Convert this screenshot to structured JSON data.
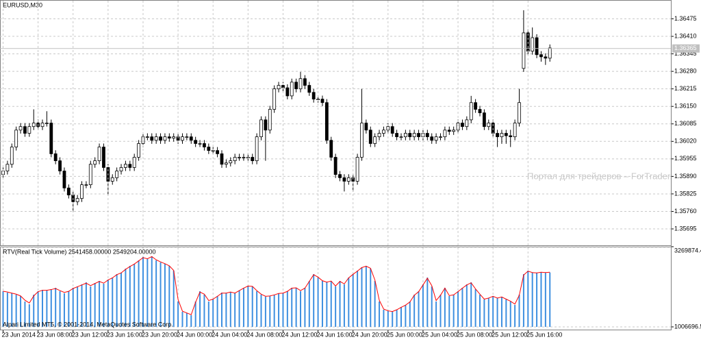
{
  "chart_data": [
    {
      "type": "candlestick",
      "title": "EURUSD,M30",
      "watermark": "Портал для трейдеров – ForTrader.ru",
      "open": [
        1.35897,
        1.3591,
        1.35935,
        1.35999,
        1.36062,
        1.36075,
        1.3605,
        1.36075,
        1.36088,
        1.36075,
        1.36088,
        1.36088,
        1.35974,
        1.35948,
        1.3591,
        1.35847,
        1.35821,
        1.35796,
        1.35808,
        1.35859,
        1.35859,
        1.35935,
        1.35948,
        1.35999,
        1.35923,
        1.35872,
        1.35885,
        1.3591,
        1.35923,
        1.35935,
        1.35923,
        1.35961,
        1.36012,
        1.36037,
        1.36037,
        1.36024,
        1.36037,
        1.36024,
        1.36037,
        1.36032,
        1.36037,
        1.36024,
        1.36037,
        1.36037,
        1.36024,
        1.36012,
        1.36012,
        1.35999,
        1.35986,
        1.35986,
        1.35974,
        1.35935,
        1.3594,
        1.35948,
        1.35961,
        1.35961,
        1.35961,
        1.35961,
        1.35948,
        1.36037,
        1.361,
        1.36062,
        1.36139,
        1.36215,
        1.36228,
        1.36219,
        1.36189,
        1.3624,
        1.36215,
        1.36253,
        1.36228,
        1.36202,
        1.36177,
        1.36177,
        1.36164,
        1.36024,
        1.35961,
        1.35897,
        1.35885,
        1.35872,
        1.35885,
        1.35872,
        1.35961,
        1.36088,
        1.36062,
        1.36012,
        1.36037,
        1.3605,
        1.36062,
        1.36075,
        1.3605,
        1.36037,
        1.36037,
        1.3605,
        1.36037,
        1.3605,
        1.36037,
        1.3605,
        1.36037,
        1.36024,
        1.36037,
        1.36037,
        1.36062,
        1.36057,
        1.36062,
        1.36088,
        1.36075,
        1.361,
        1.36164,
        1.36139,
        1.36126,
        1.36075,
        1.36088,
        1.3605,
        1.36037,
        1.3605,
        1.36041,
        1.36037,
        1.36088,
        1.36291,
        1.36423,
        1.36355,
        1.36405,
        1.36342,
        1.36334,
        1.36329
      ],
      "high": [
        1.35923,
        1.35948,
        1.36012,
        1.36075,
        1.36088,
        1.36088,
        1.36088,
        1.36139,
        1.36101,
        1.36101,
        1.36132,
        1.36101,
        1.35987,
        1.35961,
        1.35923,
        1.3586,
        1.35834,
        1.35821,
        1.35872,
        1.35872,
        1.35948,
        1.35961,
        1.36012,
        1.36012,
        1.35936,
        1.35898,
        1.35923,
        1.35936,
        1.35948,
        1.35948,
        1.35974,
        1.36025,
        1.3605,
        1.3605,
        1.3605,
        1.3605,
        1.3605,
        1.3605,
        1.3605,
        1.3605,
        1.3605,
        1.3605,
        1.3605,
        1.3605,
        1.36037,
        1.36025,
        1.36025,
        1.36012,
        1.35999,
        1.35999,
        1.35987,
        1.35953,
        1.35961,
        1.35974,
        1.35974,
        1.35974,
        1.35974,
        1.35974,
        1.3605,
        1.36113,
        1.36113,
        1.36152,
        1.36228,
        1.36241,
        1.36241,
        1.36232,
        1.36253,
        1.36253,
        1.36278,
        1.36266,
        1.36241,
        1.36215,
        1.3619,
        1.3619,
        1.36177,
        1.36037,
        1.35974,
        1.3591,
        1.35898,
        1.35898,
        1.35898,
        1.35974,
        1.36215,
        1.36101,
        1.36075,
        1.3605,
        1.36063,
        1.36075,
        1.36088,
        1.36088,
        1.36063,
        1.3605,
        1.36063,
        1.36063,
        1.36063,
        1.36063,
        1.36063,
        1.36063,
        1.3605,
        1.3605,
        1.3605,
        1.36075,
        1.36075,
        1.36075,
        1.36101,
        1.36101,
        1.36113,
        1.36189,
        1.36177,
        1.36152,
        1.36139,
        1.36101,
        1.36101,
        1.36063,
        1.36063,
        1.36063,
        1.36063,
        1.36101,
        1.36215,
        1.36507,
        1.36436,
        1.36443,
        1.36418,
        1.36355,
        1.36347,
        1.3638
      ],
      "low": [
        1.35884,
        1.35897,
        1.35922,
        1.35986,
        1.36049,
        1.36037,
        1.36037,
        1.36062,
        1.36062,
        1.36062,
        1.36075,
        1.35961,
        1.35935,
        1.35897,
        1.35834,
        1.35808,
        1.35758,
        1.35783,
        1.35795,
        1.35846,
        1.35846,
        1.35922,
        1.35935,
        1.3591,
        1.35821,
        1.35859,
        1.35872,
        1.35897,
        1.3591,
        1.3591,
        1.3591,
        1.35948,
        1.35999,
        1.36024,
        1.36011,
        1.36011,
        1.36011,
        1.36011,
        1.36019,
        1.36019,
        1.36011,
        1.36011,
        1.36024,
        1.36011,
        1.35999,
        1.35999,
        1.35986,
        1.35973,
        1.35973,
        1.35961,
        1.35922,
        1.35922,
        1.35927,
        1.35935,
        1.35948,
        1.35948,
        1.35948,
        1.35935,
        1.35935,
        1.36024,
        1.35948,
        1.36049,
        1.36126,
        1.36202,
        1.36206,
        1.36176,
        1.36176,
        1.36202,
        1.36202,
        1.36215,
        1.36189,
        1.36164,
        1.36164,
        1.36151,
        1.36011,
        1.35948,
        1.35884,
        1.35872,
        1.35834,
        1.35859,
        1.35834,
        1.35859,
        1.35948,
        1.36049,
        1.35999,
        1.35999,
        1.36024,
        1.36037,
        1.36049,
        1.36037,
        1.36024,
        1.36024,
        1.36024,
        1.36024,
        1.36024,
        1.36024,
        1.36024,
        1.36024,
        1.36011,
        1.36011,
        1.36024,
        1.36024,
        1.36044,
        1.36044,
        1.36049,
        1.36062,
        1.36062,
        1.36087,
        1.36126,
        1.36113,
        1.36062,
        1.36062,
        1.36037,
        1.35999,
        1.36011,
        1.36011,
        1.35999,
        1.36024,
        1.36075,
        1.36278,
        1.36342,
        1.36342,
        1.36329,
        1.36316,
        1.36304,
        1.36316
      ],
      "close": [
        1.3591,
        1.35935,
        1.35999,
        1.36062,
        1.36075,
        1.3605,
        1.36075,
        1.36088,
        1.36075,
        1.36088,
        1.36088,
        1.35974,
        1.35948,
        1.3591,
        1.35847,
        1.35821,
        1.35796,
        1.35808,
        1.35859,
        1.35859,
        1.35935,
        1.35948,
        1.35999,
        1.35923,
        1.35872,
        1.35885,
        1.3591,
        1.35923,
        1.35935,
        1.35923,
        1.35961,
        1.36012,
        1.36037,
        1.36037,
        1.36024,
        1.36037,
        1.36024,
        1.36037,
        1.36032,
        1.36037,
        1.36024,
        1.36037,
        1.36037,
        1.36024,
        1.36012,
        1.36012,
        1.35999,
        1.35986,
        1.35986,
        1.35974,
        1.35935,
        1.3594,
        1.35948,
        1.35961,
        1.35961,
        1.35961,
        1.35961,
        1.35948,
        1.36037,
        1.361,
        1.36062,
        1.36139,
        1.36215,
        1.36228,
        1.36219,
        1.36189,
        1.3624,
        1.36215,
        1.36253,
        1.36228,
        1.36202,
        1.36177,
        1.36177,
        1.36164,
        1.36024,
        1.35961,
        1.35897,
        1.35885,
        1.35872,
        1.35885,
        1.35872,
        1.35961,
        1.36088,
        1.36062,
        1.36012,
        1.36037,
        1.3605,
        1.36062,
        1.36075,
        1.3605,
        1.36037,
        1.36037,
        1.3605,
        1.36037,
        1.3605,
        1.36037,
        1.3605,
        1.36037,
        1.36024,
        1.36037,
        1.36037,
        1.36062,
        1.36057,
        1.36062,
        1.36088,
        1.36075,
        1.361,
        1.36164,
        1.36139,
        1.36126,
        1.36075,
        1.36088,
        1.3605,
        1.36037,
        1.3605,
        1.36041,
        1.36037,
        1.36088,
        1.36164,
        1.36423,
        1.36355,
        1.36405,
        1.36342,
        1.36334,
        1.36329,
        1.36367
      ],
      "up_color": "#ffffff",
      "down_color": "#000000",
      "outline_color": "#000000",
      "ylim": [
        1.35634,
        1.36545
      ],
      "yticks": [
        1.36475,
        {
          "value": 1.3641,
          "label": "1.36410"
        },
        1.36345,
        {
          "value": 1.3628,
          "label": "1.36280"
        },
        1.36215,
        {
          "value": 1.3615,
          "label": "1.36150"
        },
        1.36085,
        {
          "value": 1.3602,
          "label": "1.36020"
        },
        1.35955,
        {
          "value": 1.3589,
          "label": "1.35890"
        },
        1.35825,
        {
          "value": 1.3576,
          "label": "1.35760"
        },
        1.35695
      ],
      "current_price": 1.36365,
      "grid": true
    },
    {
      "type": "volume",
      "title": "RTV(Real Tick Volume) 2541458.00000 2549204.00000",
      "footer": "Alpari Limited MT5, © 2001-2014, MetaQuotes Software Corp.",
      "categories": [
        "23 Jun 2014",
        null,
        null,
        null,
        null,
        null,
        null,
        null,
        "23 Jun 08:00",
        null,
        null,
        null,
        null,
        null,
        null,
        null,
        "23 Jun 12:00",
        null,
        null,
        null,
        null,
        null,
        null,
        null,
        "23 Jun 16:00",
        null,
        null,
        null,
        null,
        null,
        null,
        null,
        "23 Jun 20:00",
        null,
        null,
        null,
        null,
        null,
        null,
        null,
        "24 Jun 00:00",
        null,
        null,
        null,
        null,
        null,
        null,
        null,
        "24 Jun 04:00",
        null,
        null,
        null,
        null,
        null,
        null,
        null,
        "24 Jun 08:00",
        null,
        null,
        null,
        null,
        null,
        null,
        null,
        "24 Jun 12:00",
        null,
        null,
        null,
        null,
        null,
        null,
        null,
        "24 Jun 16:00",
        null,
        null,
        null,
        null,
        null,
        null,
        null,
        "24 Jun 20:00",
        null,
        null,
        null,
        null,
        null,
        null,
        null,
        "25 Jun 00:00",
        null,
        null,
        null,
        null,
        null,
        null,
        null,
        "25 Jun 04:00",
        null,
        null,
        null,
        null,
        null,
        null,
        null,
        "25 Jun 08:00",
        null,
        null,
        null,
        null,
        null,
        null,
        null,
        "25 Jun 12:00",
        null,
        null,
        null,
        null,
        null,
        null,
        null,
        "25 Jun 16:00",
        null,
        null,
        null,
        null,
        null
      ],
      "series": [
        {
          "color": "#3d8fe0",
          "style": "histogram",
          "values": [
            2012500,
            1973900,
            1954500,
            1915800,
            1877100,
            1722400,
            1645000,
            1915800,
            2012500,
            2051200,
            2031900,
            2070600,
            2109300,
            2012500,
            1954500,
            2012500,
            2109300,
            2147900,
            2206000,
            2264000,
            2147900,
            2244700,
            2302700,
            2225300,
            2341400,
            2399400,
            2496100,
            2534800,
            2650900,
            2728200,
            2786300,
            2883000,
            2979700,
            2921700,
            2999000,
            2883000,
            2824900,
            2786300,
            2728200,
            2592800,
            1722400,
            1432200,
            1393600,
            1335500,
            1722400,
            2012500,
            1915800,
            1722400,
            1780400,
            1877100,
            1973900,
            1954500,
            1993200,
            1954500,
            2031900,
            2109300,
            2167300,
            2147900,
            2012500,
            1915800,
            1857800,
            1877100,
            1915800,
            1954500,
            1954500,
            2012500,
            2109300,
            2109300,
            2012500,
            2109300,
            2302700,
            2496100,
            2399400,
            2302700,
            2264000,
            2302700,
            2147900,
            2302700,
            2206000,
            2399400,
            2496100,
            2592800,
            2689500,
            2728200,
            2650900,
            2302700,
            1722400,
            1490300,
            1451600,
            1432200,
            1490300,
            1567600,
            1625700,
            1722400,
            1915800,
            2012500,
            2206000,
            2399400,
            2147900,
            1722400,
            1915800,
            2109300,
            1877100,
            1915800,
            2012500,
            2109300,
            2206000,
            2264000,
            2070600,
            1915800,
            1780400,
            1819100,
            1877100,
            1819100,
            1857800,
            1780400,
            1722400,
            1625700,
            1915800,
            2496100,
            2592800,
            2534800,
            2534800,
            2554100,
            2534800,
            2541458
          ]
        },
        {
          "color": "#ff0000",
          "style": "line",
          "values": [
            2012500,
            1990000,
            1960000,
            1930000,
            1880000,
            1760000,
            1680000,
            1880000,
            2000000,
            2040000,
            2040000,
            2060000,
            2090000,
            2030000,
            1980000,
            2010000,
            2090000,
            2140000,
            2190000,
            2240000,
            2170000,
            2230000,
            2290000,
            2240000,
            2330000,
            2390000,
            2480000,
            2530000,
            2630000,
            2710000,
            2780000,
            2870000,
            2960000,
            2930000,
            2990000,
            2900000,
            2840000,
            2790000,
            2730000,
            2600000,
            1780000,
            1450000,
            1400000,
            1350000,
            1700000,
            1990000,
            1930000,
            1750000,
            1790000,
            1870000,
            1960000,
            1960000,
            1990000,
            1960000,
            2030000,
            2100000,
            2160000,
            2150000,
            2030000,
            1930000,
            1870000,
            1880000,
            1910000,
            1950000,
            1960000,
            2010000,
            2100000,
            2110000,
            2030000,
            2100000,
            2290000,
            2480000,
            2410000,
            2310000,
            2270000,
            2300000,
            2160000,
            2290000,
            2220000,
            2390000,
            2490000,
            2580000,
            2680000,
            2720000,
            2660000,
            2330000,
            1760000,
            1510000,
            1460000,
            1440000,
            1490000,
            1560000,
            1620000,
            1710000,
            1900000,
            2000000,
            2190000,
            2380000,
            2170000,
            1750000,
            1900000,
            2100000,
            1890000,
            1910000,
            2000000,
            2100000,
            2190000,
            2250000,
            2080000,
            1930000,
            1790000,
            1820000,
            1870000,
            1820000,
            1850000,
            1790000,
            1730000,
            1650000,
            1900000,
            2470000,
            2580000,
            2540000,
            2530000,
            2550000,
            2540000,
            2549204
          ]
        }
      ],
      "ylim": [
        1006696.52,
        3269874.47
      ],
      "yticks": [
        3269874.47,
        1006696.52
      ],
      "grid": true
    }
  ]
}
